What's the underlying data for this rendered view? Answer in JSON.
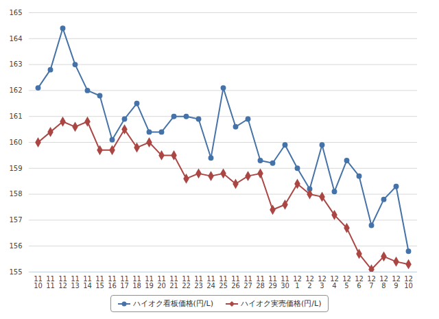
{
  "chart_data": {
    "type": "line",
    "categories": [
      "11\n10",
      "11\n11",
      "11\n12",
      "11\n13",
      "11\n14",
      "11\n15",
      "11\n16",
      "11\n17",
      "11\n18",
      "11\n19",
      "11\n20",
      "11\n21",
      "11\n22",
      "11\n23",
      "11\n24",
      "11\n25",
      "11\n26",
      "11\n27",
      "11\n28",
      "11\n29",
      "11\n30",
      "12\n1",
      "12\n2",
      "12\n3",
      "12\n4",
      "12\n5",
      "12\n6",
      "12\n7",
      "12\n8",
      "12\n9",
      "12\n10"
    ],
    "series": [
      {
        "name": "ハイオク看板価格(円/L)",
        "color": "#4572A7",
        "marker": "circle",
        "values": [
          162.1,
          162.8,
          164.4,
          163.0,
          162.0,
          161.8,
          160.1,
          160.9,
          161.5,
          160.4,
          160.4,
          161.0,
          161.0,
          160.9,
          159.4,
          162.1,
          160.6,
          160.9,
          159.3,
          159.2,
          159.9,
          159.0,
          158.2,
          159.9,
          158.1,
          159.3,
          158.7,
          156.8,
          157.8,
          158.3,
          155.8
        ]
      },
      {
        "name": "ハイオク実売価格(円/L)",
        "color": "#AA4643",
        "marker": "diamond",
        "values": [
          160.0,
          160.4,
          160.8,
          160.6,
          160.8,
          159.7,
          159.7,
          160.5,
          159.8,
          160.0,
          159.5,
          159.5,
          158.6,
          158.8,
          158.7,
          158.8,
          158.4,
          158.7,
          158.8,
          157.4,
          157.6,
          158.4,
          158.0,
          157.9,
          157.2,
          156.7,
          155.7,
          155.1,
          155.6,
          155.4,
          155.3
        ]
      }
    ],
    "ylim": [
      155,
      165
    ],
    "yticks": [
      155,
      156,
      157,
      158,
      159,
      160,
      161,
      162,
      163,
      164,
      165
    ],
    "grid": true,
    "legend": "bottom"
  }
}
